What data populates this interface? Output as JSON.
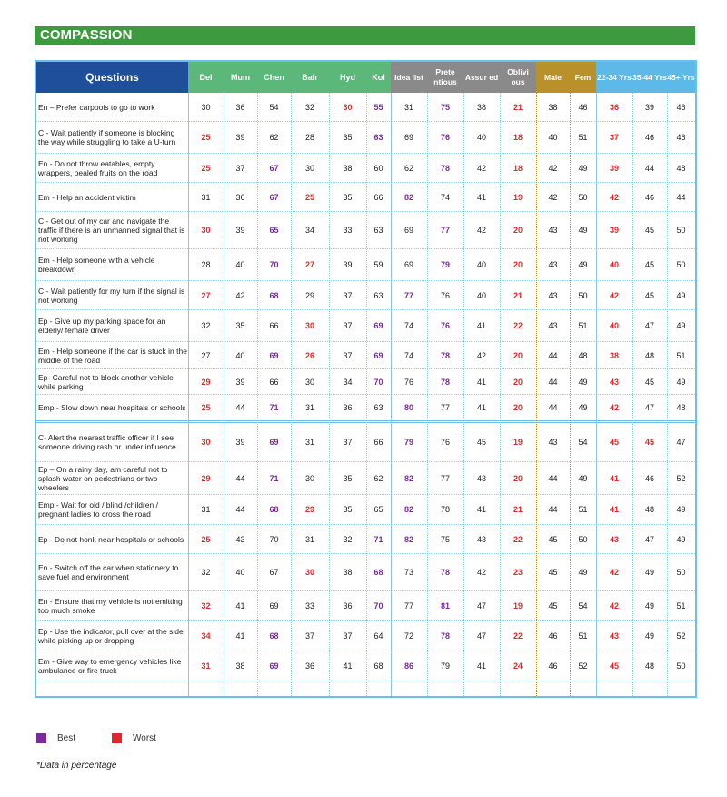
{
  "title": "COMPASSION",
  "columns": [
    "Questions",
    "Del",
    "Mum",
    "Chen",
    "Balr",
    "Hyd",
    "Kol",
    "Idea list",
    "Prete ntious",
    "Assur ed",
    "Oblivi ous",
    "Male",
    "Fem",
    "22-34 Yrs",
    "35-44 Yrs",
    "45+ Yrs"
  ],
  "rows": [
    {
      "q": "En – Prefer carpools to go to work",
      "v": [
        30,
        36,
        54,
        32,
        30,
        55,
        31,
        75,
        38,
        21,
        38,
        46,
        36,
        39,
        46
      ],
      "m": [
        "",
        "",
        "",
        "",
        "w",
        "b",
        "",
        "b",
        "",
        "w",
        "",
        "",
        "w",
        "",
        ""
      ]
    },
    {
      "q": "C - Wait patiently if someone is blocking the way while struggling to take a U-turn",
      "v": [
        25,
        39,
        62,
        28,
        35,
        63,
        69,
        76,
        40,
        18,
        40,
        51,
        37,
        46,
        46
      ],
      "m": [
        "w",
        "",
        "",
        "",
        "",
        "b",
        "",
        "b",
        "",
        "w",
        "",
        "",
        "w",
        "",
        ""
      ]
    },
    {
      "q": "En - Do not throw eatables, empty wrappers, pealed fruits on the road",
      "v": [
        25,
        37,
        67,
        30,
        38,
        60,
        62,
        78,
        42,
        18,
        42,
        49,
        39,
        44,
        48
      ],
      "m": [
        "w",
        "",
        "b",
        "",
        "",
        "",
        "",
        "b",
        "",
        "w",
        "",
        "",
        "w",
        "",
        ""
      ]
    },
    {
      "q": "Em - Help an accident victim",
      "v": [
        31,
        36,
        67,
        25,
        35,
        66,
        82,
        74,
        41,
        19,
        42,
        50,
        42,
        46,
        44
      ],
      "m": [
        "",
        "",
        "b",
        "w",
        "",
        "",
        "b",
        "",
        "",
        "w",
        "",
        "",
        "w",
        "",
        ""
      ]
    },
    {
      "q": "C - Get out of my car and navigate the traffic if there is an unmanned signal that is not working",
      "v": [
        30,
        39,
        65,
        34,
        33,
        63,
        69,
        77,
        42,
        20,
        43,
        49,
        39,
        45,
        50
      ],
      "m": [
        "w",
        "",
        "b",
        "",
        "",
        "",
        "",
        "b",
        "",
        "w",
        "",
        "",
        "w",
        "",
        ""
      ]
    },
    {
      "q": "Em - Help someone with a vehicle breakdown",
      "v": [
        28,
        40,
        70,
        27,
        39,
        59,
        69,
        79,
        40,
        20,
        43,
        49,
        40,
        45,
        50
      ],
      "m": [
        "",
        "",
        "b",
        "w",
        "",
        "",
        "",
        "b",
        "",
        "w",
        "",
        "",
        "w",
        "",
        ""
      ]
    },
    {
      "q": "C - Wait patiently for my turn if the signal is not working",
      "v": [
        27,
        42,
        68,
        29,
        37,
        63,
        77,
        76,
        40,
        21,
        43,
        50,
        42,
        45,
        49
      ],
      "m": [
        "w",
        "",
        "b",
        "",
        "",
        "",
        "b",
        "",
        "",
        "w",
        "",
        "",
        "w",
        "",
        ""
      ]
    },
    {
      "q": "Ep - Give up my parking space for an elderly/ female driver",
      "v": [
        32,
        35,
        66,
        30,
        37,
        69,
        74,
        76,
        41,
        22,
        43,
        51,
        40,
        47,
        49
      ],
      "m": [
        "",
        "",
        "",
        "w",
        "",
        "b",
        "",
        "b",
        "",
        "w",
        "",
        "",
        "w",
        "",
        ""
      ]
    },
    {
      "q": "Em - Help someone if the car is stuck in the middle of the road",
      "v": [
        27,
        40,
        69,
        26,
        37,
        69,
        74,
        78,
        42,
        20,
        44,
        48,
        38,
        48,
        51
      ],
      "m": [
        "",
        "",
        "b",
        "w",
        "",
        "b",
        "",
        "b",
        "",
        "w",
        "",
        "",
        "w",
        "",
        ""
      ]
    },
    {
      "q": "Ep- Careful not to block another vehicle while parking",
      "v": [
        29,
        39,
        66,
        30,
        34,
        70,
        76,
        78,
        41,
        20,
        44,
        49,
        43,
        45,
        49
      ],
      "m": [
        "w",
        "",
        "",
        "",
        "",
        "b",
        "",
        "b",
        "",
        "w",
        "",
        "",
        "w",
        "",
        ""
      ]
    },
    {
      "q": "Emp - Slow down near hospitals or schools",
      "v": [
        25,
        44,
        71,
        31,
        36,
        63,
        80,
        77,
        41,
        20,
        44,
        49,
        42,
        47,
        48
      ],
      "m": [
        "w",
        "",
        "b",
        "",
        "",
        "",
        "b",
        "",
        "",
        "w",
        "",
        "",
        "w",
        "",
        ""
      ]
    },
    {
      "q": "C- Alert the nearest traffic officer if I see someone driving rash or under influence",
      "v": [
        30,
        39,
        69,
        31,
        37,
        66,
        79,
        76,
        45,
        19,
        43,
        54,
        45,
        45,
        47
      ],
      "m": [
        "w",
        "",
        "b",
        "",
        "",
        "",
        "b",
        "",
        "",
        "w",
        "",
        "",
        "w",
        "w",
        ""
      ]
    },
    {
      "q": "Ep – On a rainy day, am careful not to splash water on pedestrians or two wheelers",
      "v": [
        29,
        44,
        71,
        30,
        35,
        62,
        82,
        77,
        43,
        20,
        44,
        49,
        41,
        46,
        52
      ],
      "m": [
        "w",
        "",
        "b",
        "",
        "",
        "",
        "b",
        "",
        "",
        "w",
        "",
        "",
        "w",
        "",
        ""
      ]
    },
    {
      "q": "Emp - Wait for old / blind /children / pregnant ladies to cross the road",
      "v": [
        31,
        44,
        68,
        29,
        35,
        65,
        82,
        78,
        41,
        21,
        44,
        51,
        41,
        48,
        49
      ],
      "m": [
        "",
        "",
        "b",
        "w",
        "",
        "",
        "b",
        "",
        "",
        "w",
        "",
        "",
        "w",
        "",
        ""
      ]
    },
    {
      "q": "Ep - Do not honk near hospitals or schools",
      "v": [
        25,
        43,
        70,
        31,
        32,
        71,
        82,
        75,
        43,
        22,
        45,
        50,
        43,
        47,
        49
      ],
      "m": [
        "w",
        "",
        "",
        "",
        "",
        "b",
        "b",
        "",
        "",
        "w",
        "",
        "",
        "w",
        "",
        ""
      ]
    },
    {
      "q": "En - Switch off the car when stationery to save fuel and environment",
      "v": [
        32,
        40,
        67,
        30,
        38,
        68,
        73,
        78,
        42,
        23,
        45,
        49,
        42,
        49,
        50
      ],
      "m": [
        "",
        "",
        "",
        "w",
        "",
        "b",
        "",
        "b",
        "",
        "w",
        "",
        "",
        "w",
        "",
        ""
      ]
    },
    {
      "q": "En - Ensure that my vehicle is not emitting too much smoke",
      "v": [
        32,
        41,
        69,
        33,
        36,
        70,
        77,
        81,
        47,
        19,
        45,
        54,
        42,
        49,
        51
      ],
      "m": [
        "w",
        "",
        "",
        "",
        "",
        "b",
        "",
        "b",
        "",
        "w",
        "",
        "",
        "w",
        "",
        ""
      ]
    },
    {
      "q": "Ep - Use the indicator, pull over at the side while picking up or dropping",
      "v": [
        34,
        41,
        68,
        37,
        37,
        64,
        72,
        78,
        47,
        22,
        46,
        51,
        43,
        49,
        52
      ],
      "m": [
        "w",
        "",
        "b",
        "",
        "",
        "",
        "",
        "b",
        "",
        "w",
        "",
        "",
        "w",
        "",
        ""
      ]
    },
    {
      "q": "Em - Give way to emergency vehicles like ambulance or fire truck",
      "v": [
        31,
        38,
        69,
        36,
        41,
        68,
        86,
        79,
        41,
        24,
        46,
        52,
        45,
        48,
        50
      ],
      "m": [
        "w",
        "",
        "b",
        "",
        "",
        "",
        "b",
        "",
        "",
        "w",
        "",
        "",
        "w",
        "",
        ""
      ]
    }
  ],
  "legend": {
    "best_label": "Best",
    "worst_label": "Worst",
    "best_color": "#7a2a9a",
    "worst_color": "#e02828"
  },
  "note": "*Data in percentage"
}
